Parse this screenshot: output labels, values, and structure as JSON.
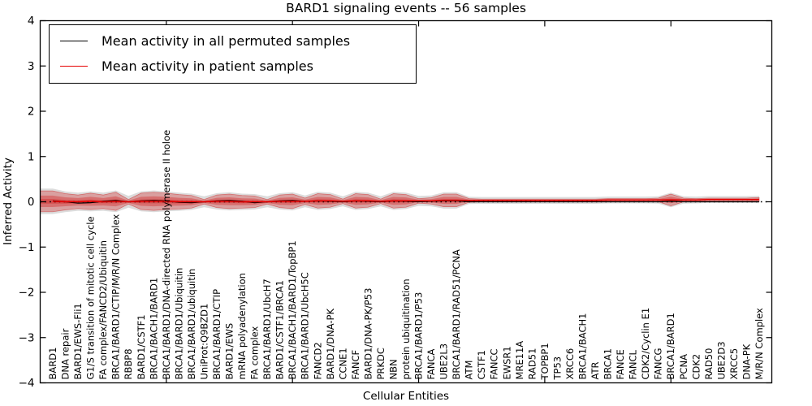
{
  "chart_data": {
    "type": "line",
    "title": "BARD1 signaling events -- 56 samples",
    "xlabel": "Cellular Entities",
    "ylabel": "Inferred Activity",
    "ylim": [
      -4,
      4
    ],
    "yticks": [
      4,
      3,
      2,
      1,
      0,
      -1,
      -2,
      -3,
      -4
    ],
    "xticks_top": [
      10,
      20,
      30,
      40,
      50
    ],
    "grid": false,
    "legend_position": "upper left",
    "zero_line": {
      "style": "dotted",
      "color": "#000000"
    },
    "categories": [
      "BARD1",
      "DNA repair",
      "BARD1/EWS-Fli1",
      "G1/S transition of mitotic cell cycle",
      "FA complex/FANCD2/Ubiquitin",
      "BRCA1/BARD1/CTIP/M/R/N Complex",
      "RBBP8",
      "BARD1/CSTF1",
      "BRCA1/BACH1/BARD1",
      "BRCA1/BARD1/DNA-directed RNA polymerase II holoe",
      "BRCA1/BARD1/Ubiquitin",
      "BRCA1/BARD1/ubiquitin",
      "UniProt:Q9BZD1",
      "BRCA1/BARD1/CTIP",
      "BARD1/EWS",
      "mRNA polyadenylation",
      "FA complex",
      "BRCA1/BARD1/UbcH7",
      "BARD1/CSTF1/BRCA1",
      "BRCA1/BACH1/BARD1/TopBP1",
      "BRCA1/BARD1/UbcH5C",
      "FANCD2",
      "BARD1/DNA-PK",
      "CCNE1",
      "FANCF",
      "BARD1/DNA-PK/P53",
      "PRKDC",
      "NBN",
      "protein ubiquitination",
      "BRCA1/BARD1/P53",
      "FANCA",
      "UBE2L3",
      "BRCA1/BARD1/RAD51/PCNA",
      "ATM",
      "CSTF1",
      "FANCC",
      "EWSR1",
      "MRE11A",
      "RAD51",
      "TOPBP1",
      "TP53",
      "XRCC6",
      "BRCA1/BACH1",
      "ATR",
      "BRCA1",
      "FANCE",
      "FANCL",
      "CDK2/Cyclin E1",
      "FANCG",
      "BRCA1/BARD1",
      "PCNA",
      "CDK2",
      "RAD50",
      "UBE2D3",
      "XRCC5",
      "DNA-PK",
      "M/R/N Complex"
    ],
    "series": [
      {
        "name": "Mean activity in all permuted samples",
        "color": "#000000",
        "values": [
          0.02,
          0.0,
          -0.03,
          -0.02,
          0.01,
          0.03,
          0.0,
          0.02,
          0.03,
          0.02,
          -0.01,
          -0.02,
          0.0,
          0.02,
          0.03,
          0.01,
          -0.02,
          0.0,
          0.02,
          0.03,
          0.01,
          0.02,
          0.01,
          0.0,
          0.02,
          0.01,
          0.0,
          0.02,
          0.01,
          0.0,
          0.01,
          0.02,
          0.02,
          0.0,
          0.0,
          0.0,
          0.0,
          0.0,
          0.0,
          0.0,
          0.0,
          0.0,
          0.0,
          0.0,
          0.0,
          0.0,
          0.0,
          0.0,
          0.0,
          0.01,
          0.0,
          0.0,
          0.0,
          0.0,
          0.0,
          0.0,
          0.0
        ]
      },
      {
        "name": "Mean activity in patient samples",
        "color": "#e60000",
        "values": [
          0.01,
          0.0,
          0.0,
          0.01,
          0.0,
          0.01,
          0.0,
          0.01,
          0.01,
          0.01,
          0.0,
          0.0,
          0.0,
          0.01,
          0.01,
          0.0,
          0.0,
          0.0,
          0.01,
          0.01,
          0.01,
          0.02,
          0.02,
          0.01,
          0.02,
          0.02,
          0.01,
          0.02,
          0.02,
          0.02,
          0.02,
          0.03,
          0.03,
          0.03,
          0.03,
          0.03,
          0.03,
          0.03,
          0.03,
          0.03,
          0.03,
          0.03,
          0.03,
          0.03,
          0.04,
          0.04,
          0.04,
          0.04,
          0.04,
          0.04,
          0.04,
          0.04,
          0.05,
          0.05,
          0.05,
          0.05,
          0.05
        ]
      }
    ],
    "bands": {
      "patient_color": "#d40000",
      "permuted_color": "#9a9a9a",
      "patient_spread_halfwidth": [
        0.23,
        0.18,
        0.15,
        0.18,
        0.15,
        0.2,
        0.05,
        0.18,
        0.2,
        0.18,
        0.16,
        0.14,
        0.05,
        0.14,
        0.16,
        0.14,
        0.13,
        0.05,
        0.14,
        0.16,
        0.07,
        0.16,
        0.14,
        0.05,
        0.16,
        0.14,
        0.05,
        0.16,
        0.14,
        0.05,
        0.07,
        0.14,
        0.14,
        0.04,
        0.03,
        0.03,
        0.03,
        0.03,
        0.03,
        0.03,
        0.03,
        0.03,
        0.03,
        0.03,
        0.03,
        0.03,
        0.03,
        0.03,
        0.04,
        0.13,
        0.04,
        0.03,
        0.03,
        0.03,
        0.03,
        0.03,
        0.045
      ],
      "permuted_spread_halfwidth": [
        0.28,
        0.23,
        0.2,
        0.22,
        0.2,
        0.24,
        0.13,
        0.22,
        0.24,
        0.22,
        0.2,
        0.18,
        0.12,
        0.18,
        0.2,
        0.18,
        0.17,
        0.12,
        0.18,
        0.2,
        0.13,
        0.2,
        0.18,
        0.11,
        0.2,
        0.18,
        0.11,
        0.2,
        0.18,
        0.11,
        0.12,
        0.18,
        0.18,
        0.08,
        0.075,
        0.075,
        0.075,
        0.075,
        0.075,
        0.075,
        0.075,
        0.075,
        0.075,
        0.075,
        0.075,
        0.075,
        0.075,
        0.075,
        0.08,
        0.16,
        0.08,
        0.075,
        0.075,
        0.075,
        0.075,
        0.075,
        0.08
      ]
    }
  }
}
